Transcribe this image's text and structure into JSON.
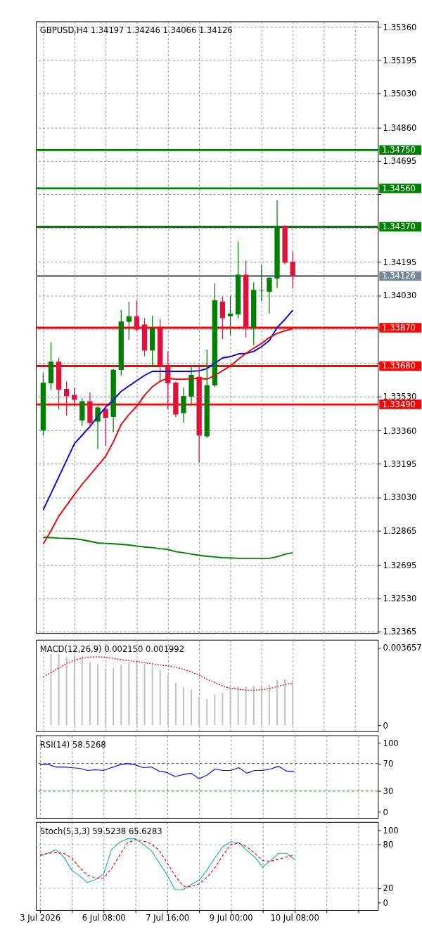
{
  "chart_data": [
    {
      "type": "candlestick",
      "title": "GBPUSD,H4 1.34197 1.34246 1.34066 1.34126",
      "categories": [
        null,
        null,
        null,
        null,
        null,
        null,
        null,
        null,
        null,
        null,
        null,
        null,
        null,
        null,
        null,
        null,
        null,
        null,
        null,
        null,
        null,
        null,
        null,
        null,
        null,
        null,
        null,
        null,
        null,
        null,
        null,
        null,
        null,
        null,
        null,
        null,
        null,
        null,
        null,
        null,
        null,
        null,
        null
      ],
      "ohlc": [
        [
          1.33361,
          1.33644,
          1.33338,
          1.33598
        ],
        [
          1.33595,
          1.33796,
          1.33563,
          1.33702
        ],
        [
          1.33702,
          1.33719,
          1.33468,
          1.33563
        ],
        [
          1.33567,
          1.33601,
          1.33437,
          1.33532
        ],
        [
          1.33538,
          1.3357,
          1.33481,
          1.33513
        ],
        [
          1.33411,
          1.33519,
          1.33386,
          1.33506
        ],
        [
          1.33506,
          1.33547,
          1.33374,
          1.33399
        ],
        [
          1.33405,
          1.33481,
          1.33273,
          1.33475
        ],
        [
          1.33468,
          1.33481,
          1.33287,
          1.33424
        ],
        [
          1.33428,
          1.33664,
          1.33355,
          1.33662
        ],
        [
          1.33661,
          1.33956,
          1.33635,
          1.33901
        ],
        [
          1.33899,
          1.33996,
          1.33813,
          1.33927
        ],
        [
          1.33927,
          1.34003,
          1.33855,
          1.33861
        ],
        [
          1.33886,
          1.33915,
          1.33731,
          1.33757
        ],
        [
          1.33757,
          1.33927,
          1.33677,
          1.33867
        ],
        [
          1.33867,
          1.33911,
          1.33608,
          1.33684
        ],
        [
          1.33684,
          1.33751,
          1.33468,
          1.33595
        ],
        [
          1.33598,
          1.33601,
          1.3343,
          1.3344
        ],
        [
          1.33447,
          1.33572,
          1.33402,
          1.33532
        ],
        [
          1.33529,
          1.33684,
          1.33487,
          1.33637
        ],
        [
          1.33627,
          1.33671,
          1.33205,
          1.33336
        ],
        [
          1.33332,
          1.33759,
          1.33327,
          1.33586
        ],
        [
          1.33585,
          1.34086,
          1.3358,
          1.34006
        ],
        [
          1.34,
          1.34021,
          1.33816,
          1.33917
        ],
        [
          1.33927,
          1.34025,
          1.33835,
          1.3394
        ],
        [
          1.33936,
          1.34295,
          1.33917,
          1.34133
        ],
        [
          1.34133,
          1.342,
          1.33823,
          1.33867
        ],
        [
          1.33871,
          1.34092,
          1.33787,
          1.34057
        ],
        [
          1.34054,
          1.3418,
          1.34004,
          1.34057
        ],
        [
          1.34048,
          1.34118,
          1.33943,
          1.34118
        ],
        [
          1.34114,
          1.34498,
          1.34069,
          1.34373
        ],
        [
          1.34373,
          1.34375,
          1.34186,
          1.34192
        ],
        [
          1.34197,
          1.34246,
          1.34066,
          1.34126
        ],
        null,
        null,
        null,
        null,
        null,
        null,
        null,
        null,
        null,
        null
      ],
      "colors": [
        "#008000",
        "#008000",
        "#dc143c",
        "#dc143c",
        "#dc143c",
        "#008000",
        "#dc143c",
        "#008000",
        "#dc143c",
        "#008000",
        "#008000",
        "#008000",
        "#dc143c",
        "#dc143c",
        "#008000",
        "#dc143c",
        "#dc143c",
        "#dc143c",
        "#008000",
        "#008000",
        "#dc143c",
        "#008000",
        "#008000",
        "#dc143c",
        "#008000",
        "#008000",
        "#dc143c",
        "#008000",
        "#008000",
        "#008000",
        "#008000",
        "#dc143c",
        "#dc143c",
        null,
        null,
        null,
        null,
        null,
        null,
        null,
        null,
        null,
        null
      ],
      "series": [
        {
          "type": "line",
          "color": "#0000ff",
          "values": [
            1.32968,
            1.33049,
            1.33131,
            1.33213,
            1.33296,
            1.33338,
            1.33381,
            1.3343,
            1.33476,
            1.33513,
            1.33555,
            1.33582,
            1.33608,
            1.33634,
            1.33654,
            1.33654,
            1.33654,
            1.33654,
            1.33654,
            1.33654,
            1.33657,
            1.33667,
            1.33694,
            1.3372,
            1.33727,
            1.3374,
            1.33743,
            1.33753,
            1.33776,
            1.33806,
            1.33871,
            1.33911,
            1.33957,
            null,
            null,
            null,
            null,
            null,
            null,
            null,
            null,
            null,
            null
          ]
        },
        {
          "type": "line",
          "color": "#ff0000",
          "values": [
            1.32799,
            1.32865,
            1.32937,
            1.3299,
            1.33044,
            1.33095,
            1.33141,
            1.33187,
            1.33233,
            1.33305,
            1.33391,
            1.3344,
            1.33481,
            1.33536,
            1.33578,
            1.33605,
            1.3362,
            1.33615,
            1.33615,
            1.33618,
            1.3362,
            1.33615,
            1.33634,
            1.33657,
            1.3368,
            1.33713,
            1.33743,
            1.33769,
            1.33792,
            1.33822,
            1.33842,
            1.33855,
            1.33865,
            null,
            null,
            null,
            null,
            null,
            null,
            null,
            null,
            null,
            null
          ]
        },
        {
          "type": "line",
          "color": "#008000",
          "values": [
            1.32832,
            1.3283,
            1.32828,
            1.32827,
            1.32825,
            1.3282,
            1.32812,
            1.32804,
            1.32802,
            1.328,
            1.32797,
            1.32794,
            1.32789,
            1.32784,
            1.32781,
            1.32776,
            1.32772,
            1.32761,
            1.32756,
            1.32749,
            1.32743,
            1.32738,
            1.32735,
            1.32731,
            1.3273,
            1.32728,
            1.32728,
            1.32728,
            1.32728,
            1.32728,
            1.32736,
            1.32748,
            1.32756,
            null,
            null,
            null,
            null,
            null,
            null,
            null,
            null,
            null,
            null
          ]
        }
      ],
      "ylim": [
        1.32358,
        1.35387
      ],
      "yticks": [
        {
          "value": 1.3536,
          "label": "1.35360"
        },
        {
          "value": 1.35195,
          "label": "1.35195"
        },
        {
          "value": 1.3503,
          "label": "1.35030"
        },
        {
          "value": 1.3486,
          "label": "1.34860"
        },
        {
          "value": 1.34695,
          "label": "1.34695"
        },
        {
          "value": 1.3453,
          "label": null
        },
        {
          "value": 1.34365,
          "label": null
        },
        {
          "value": 1.34195,
          "label": "1.34195"
        },
        {
          "value": 1.3403,
          "label": "1.34030"
        },
        {
          "value": 1.33865,
          "label": null
        },
        {
          "value": 1.33695,
          "label": null
        },
        {
          "value": 1.3353,
          "label": "1.33530"
        },
        {
          "value": 1.3336,
          "label": "1.33360"
        },
        {
          "value": 1.33195,
          "label": "1.33195"
        },
        {
          "value": 1.3303,
          "label": "1.33030"
        },
        {
          "value": 1.32865,
          "label": "1.32865"
        },
        {
          "value": 1.32695,
          "label": "1.32695"
        },
        {
          "value": 1.3253,
          "label": "1.32530"
        },
        {
          "value": 1.32365,
          "label": "1.32365"
        }
      ],
      "ref_lines": [
        {
          "axis": "y",
          "value": 1.3475,
          "label": "1.34750",
          "color": "#008000"
        },
        {
          "axis": "y",
          "value": 1.3456,
          "label": "1.34560",
          "color": "#008000"
        },
        {
          "axis": "y",
          "value": 1.3437,
          "label": "1.34370",
          "color": "#008000"
        },
        {
          "axis": "y",
          "value": 1.3387,
          "label": "1.33870",
          "color": "#ff0000"
        },
        {
          "axis": "y",
          "value": 1.3368,
          "label": "1.33680",
          "color": "#ff0000"
        },
        {
          "axis": "y",
          "value": 1.3349,
          "label": "1.33490",
          "color": "#ff0000"
        },
        {
          "axis": "y",
          "value": 1.34126,
          "label": "1.34126",
          "color": "#778899"
        }
      ],
      "grid": true,
      "tick_labels": "y"
    },
    {
      "type": "bar",
      "title": "MACD(12,26,9) 0.002150 0.001992",
      "categories": [
        null,
        null,
        null,
        null,
        null,
        null,
        null,
        null,
        null,
        null,
        null,
        null,
        null,
        null,
        null,
        null,
        null,
        null,
        null,
        null,
        null,
        null,
        null,
        null,
        null,
        null,
        null,
        null,
        null,
        null,
        null,
        null,
        null,
        null,
        null,
        null,
        null,
        null,
        null,
        null,
        null,
        null,
        null
      ],
      "series": [
        {
          "type": "bar",
          "color": "#c0c0c0",
          "values": [
            null,
            0.00337,
            0.00337,
            0.00322,
            0.00332,
            0.00327,
            0.00299,
            0.00287,
            0.00266,
            0.00271,
            0.00287,
            0.00299,
            0.00302,
            0.00289,
            0.00281,
            0.00261,
            0.00236,
            0.002,
            0.0018,
            0.00168,
            0.00134,
            0.00124,
            0.00146,
            0.00154,
            0.00165,
            0.00185,
            0.0018,
            0.00185,
            0.00187,
            0.00192,
            0.00213,
            0.00217,
            0.00215,
            null,
            null,
            null,
            null,
            null,
            null,
            null,
            null,
            null,
            null
          ]
        },
        {
          "type": "line",
          "color": "#ff0000",
          "line_style": "dotted",
          "values": [
            0.00229,
            0.00249,
            0.0027,
            0.00292,
            0.00307,
            0.00317,
            0.00322,
            0.00323,
            0.00321,
            0.00315,
            0.0031,
            0.00305,
            0.003,
            0.00295,
            0.0029,
            0.00284,
            0.0028,
            0.00274,
            0.00264,
            0.00252,
            0.00236,
            0.00217,
            0.00202,
            0.00185,
            0.00175,
            0.0017,
            0.00166,
            0.00165,
            0.00168,
            0.00173,
            0.00183,
            0.00192,
            0.001992,
            null,
            null,
            null,
            null,
            null,
            null,
            null,
            null,
            null,
            null
          ]
        }
      ],
      "ylim": [
        -0.00028,
        0.00403
      ],
      "yticks": [
        0.003657,
        0
      ],
      "grid": "x",
      "tick_labels": "y"
    },
    {
      "type": "line",
      "title": "RSI(14) 58.5268",
      "categories": [
        null,
        null,
        null,
        null,
        null,
        null,
        null,
        null,
        null,
        null,
        null,
        null,
        null,
        null,
        null,
        null,
        null,
        null,
        null,
        null,
        null,
        null,
        null,
        null,
        null,
        null,
        null,
        null,
        null,
        null,
        null,
        null,
        null,
        null,
        null,
        null,
        null,
        null,
        null,
        null,
        null,
        null,
        null
      ],
      "series": [
        {
          "color": "#0000ff",
          "values": [
            68,
            69,
            65,
            65,
            64,
            63,
            60,
            61,
            60,
            64,
            68,
            70,
            68,
            64,
            65,
            59,
            57,
            51,
            54,
            56,
            48,
            53,
            62,
            60,
            60,
            64,
            56,
            60,
            60,
            62,
            66,
            59,
            58.5268,
            null,
            null,
            null,
            null,
            null,
            null,
            null,
            null,
            null,
            null
          ]
        }
      ],
      "ylim": [
        -9,
        111
      ],
      "yticks": [
        100,
        70,
        30,
        0
      ],
      "ref_lines": [
        {
          "axis": "y",
          "value": 70,
          "color": "#008000",
          "line_style": "dashed"
        },
        {
          "axis": "y",
          "value": 30,
          "color": "#008000",
          "line_style": "dashed"
        }
      ],
      "grid": "x",
      "tick_labels": "y"
    },
    {
      "type": "line",
      "title": "Stoch(5,3,3) 59.5238 65.6283",
      "categories": [
        "3 Jul 2026",
        null,
        null,
        null,
        null,
        null,
        null,
        null,
        "6 Jul 08:00",
        null,
        null,
        null,
        null,
        null,
        null,
        null,
        "7 Jul 16:00",
        null,
        null,
        null,
        null,
        null,
        null,
        null,
        "9 Jul 00:00",
        null,
        null,
        null,
        null,
        null,
        null,
        null,
        "10 Jul 08:00",
        null,
        null,
        null,
        null,
        null,
        null,
        null,
        null,
        null,
        null
      ],
      "series": [
        {
          "color": "#20b2aa",
          "values": [
            64,
            68,
            73,
            63,
            45,
            37,
            28,
            32,
            39,
            73,
            83,
            88,
            88,
            80,
            72,
            55,
            38,
            18,
            18,
            25,
            31,
            45,
            62,
            77,
            84,
            83,
            72,
            63,
            49,
            58,
            68,
            68,
            59.5238,
            null,
            null,
            null,
            null,
            null,
            null,
            null,
            null,
            null,
            null
          ]
        },
        {
          "color": "#ff0000",
          "line_style": "dashed",
          "values": [
            66,
            68,
            69,
            68,
            62,
            48,
            38,
            34,
            34,
            47,
            65,
            82,
            87,
            85,
            81,
            72,
            55,
            37,
            23,
            22,
            26,
            35,
            48,
            65,
            80,
            82,
            77,
            68,
            58,
            57,
            60,
            63,
            65.6283,
            null,
            null,
            null,
            null,
            null,
            null,
            null,
            null,
            null,
            null
          ]
        }
      ],
      "ylim": [
        -10,
        111
      ],
      "yticks": [
        100,
        80,
        20,
        0
      ],
      "ref_lines": [
        {
          "axis": "y",
          "value": 80,
          "color": "#b4b4b4",
          "line_style": "dashed"
        },
        {
          "axis": "y",
          "value": 20,
          "color": "#b4b4b4",
          "line_style": "dashed"
        }
      ],
      "grid": "x"
    }
  ]
}
